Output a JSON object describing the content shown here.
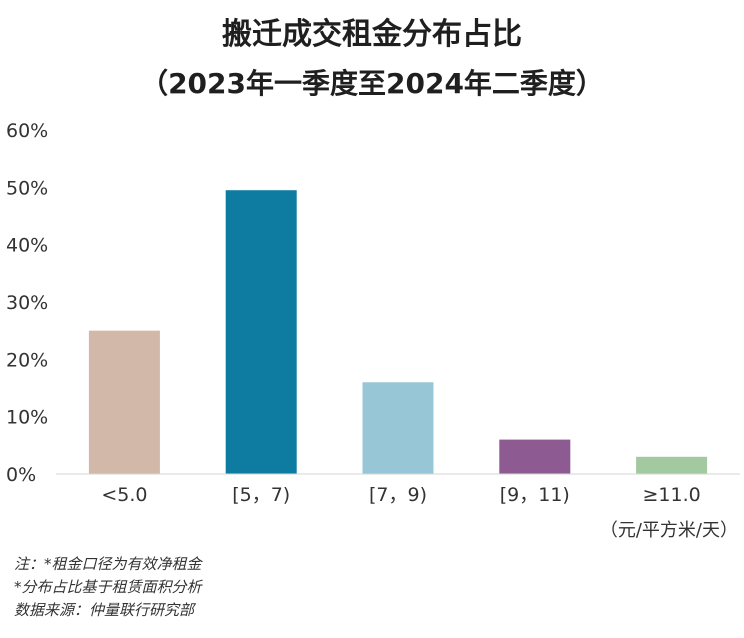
{
  "chart_data": {
    "type": "bar",
    "title": "搬迁成交租金分布占比",
    "subtitle": "（2023年一季度至2024年二季度）",
    "categories": [
      "<5.0",
      "[5，7)",
      "[7，9)",
      "[9，11)",
      "≥11.0"
    ],
    "values": [
      25,
      49.5,
      16,
      6,
      3
    ],
    "bar_colors": [
      "#d1b8a8",
      "#0e7ba1",
      "#97c7d6",
      "#8e5a92",
      "#a2c9a0"
    ],
    "y_tick_labels": [
      "0%",
      "10%",
      "20%",
      "30%",
      "40%",
      "50%",
      "60%"
    ],
    "ylim": [
      0,
      60
    ],
    "y_unit": "%",
    "xlabel": "（元/平方米/天）",
    "ylabel": "",
    "grid": false,
    "legend": "none"
  },
  "notes": [
    "注：*租金口径为有效净租金",
    "*分布占比基于租赁面积分析",
    "数据来源：仲量联行研究部"
  ]
}
